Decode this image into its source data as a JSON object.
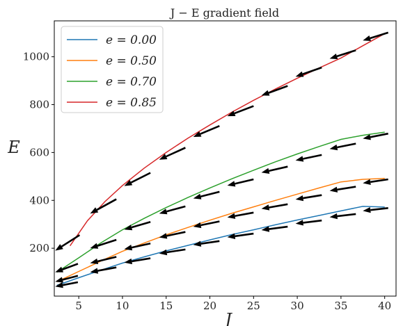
{
  "chart_data": {
    "type": "line",
    "title": "J − E gradient field",
    "xlabel": "J",
    "ylabel": "E",
    "xlim": [
      2.2,
      41.3
    ],
    "ylim": [
      0,
      1150
    ],
    "xticks": [
      5,
      10,
      15,
      20,
      25,
      30,
      35,
      40
    ],
    "yticks": [
      200,
      400,
      600,
      800,
      1000
    ],
    "grid": false,
    "legend_position": "top-left",
    "series": [
      {
        "name": "e = 0.00",
        "color": "#1f77b4",
        "x": [
          2.5,
          5,
          7.5,
          10,
          12.5,
          15,
          17.5,
          20,
          22.5,
          25,
          27.5,
          30,
          32.5,
          35,
          37.5,
          40
        ],
        "y": [
          45,
          77,
          108,
          138,
          164,
          189,
          212,
          235,
          257,
          277,
          298,
          318,
          337,
          356,
          375,
          372
        ]
      },
      {
        "name": "e = 0.50",
        "color": "#ff7f0e",
        "x": [
          2.5,
          5,
          7.5,
          10,
          12.5,
          15,
          17.5,
          20,
          22.5,
          25,
          27.5,
          30,
          32.5,
          35,
          37.5,
          40
        ],
        "y": [
          60,
          103,
          146,
          187,
          222,
          256,
          287,
          317,
          346,
          373,
          400,
          426,
          452,
          477,
          488,
          492
        ]
      },
      {
        "name": "e = 0.70",
        "color": "#2ca02c",
        "x": [
          2.5,
          5,
          7.5,
          10,
          12.5,
          15,
          17.5,
          20,
          22.5,
          25,
          27.5,
          30,
          32.5,
          35,
          37.5,
          40
        ],
        "y": [
          100,
          160,
          222,
          277,
          325,
          370,
          412,
          452,
          490,
          526,
          561,
          594,
          625,
          655,
          672,
          685
        ]
      },
      {
        "name": "e = 0.85",
        "color": "#d62728",
        "x": [
          4,
          6,
          8,
          10,
          12.5,
          15,
          17.5,
          20,
          22.5,
          25,
          27.5,
          30,
          32.5,
          35,
          37.5,
          40
        ],
        "y": [
          210,
          315,
          395,
          462,
          535,
          600,
          660,
          715,
          768,
          818,
          865,
          910,
          953,
          995,
          1046,
          1097
        ]
      }
    ],
    "arrows": [
      {
        "x": 2.3,
        "y": 40,
        "dx": 2.6,
        "dy": 18
      },
      {
        "x": 6.3,
        "y": 100,
        "dx": 3.0,
        "dy": 20
      },
      {
        "x": 10.2,
        "y": 140,
        "dx": 3.0,
        "dy": 18
      },
      {
        "x": 14.2,
        "y": 178,
        "dx": 3.0,
        "dy": 17
      },
      {
        "x": 18.1,
        "y": 214,
        "dx": 3.0,
        "dy": 16
      },
      {
        "x": 22.0,
        "y": 246,
        "dx": 3.0,
        "dy": 15
      },
      {
        "x": 25.9,
        "y": 276,
        "dx": 3.0,
        "dy": 14
      },
      {
        "x": 29.8,
        "y": 303,
        "dx": 3.0,
        "dy": 13
      },
      {
        "x": 33.7,
        "y": 330,
        "dx": 3.0,
        "dy": 13
      },
      {
        "x": 37.5,
        "y": 356,
        "dx": 2.9,
        "dy": 12
      },
      {
        "x": 2.3,
        "y": 60,
        "dx": 2.6,
        "dy": 25
      },
      {
        "x": 6.3,
        "y": 138,
        "dx": 3.0,
        "dy": 26
      },
      {
        "x": 10.2,
        "y": 196,
        "dx": 3.0,
        "dy": 24
      },
      {
        "x": 14.2,
        "y": 245,
        "dx": 3.0,
        "dy": 23
      },
      {
        "x": 18.1,
        "y": 290,
        "dx": 3.0,
        "dy": 22
      },
      {
        "x": 22.0,
        "y": 329,
        "dx": 3.0,
        "dy": 20
      },
      {
        "x": 25.9,
        "y": 365,
        "dx": 3.0,
        "dy": 19
      },
      {
        "x": 29.8,
        "y": 404,
        "dx": 3.0,
        "dy": 18
      },
      {
        "x": 33.7,
        "y": 440,
        "dx": 3.0,
        "dy": 17
      },
      {
        "x": 37.5,
        "y": 472,
        "dx": 2.9,
        "dy": 16
      },
      {
        "x": 2.3,
        "y": 100,
        "dx": 2.6,
        "dy": 35
      },
      {
        "x": 6.3,
        "y": 200,
        "dx": 3.0,
        "dy": 35
      },
      {
        "x": 10.2,
        "y": 278,
        "dx": 3.0,
        "dy": 32
      },
      {
        "x": 14.2,
        "y": 345,
        "dx": 3.0,
        "dy": 30
      },
      {
        "x": 18.1,
        "y": 408,
        "dx": 3.0,
        "dy": 28
      },
      {
        "x": 22.0,
        "y": 462,
        "dx": 3.0,
        "dy": 26
      },
      {
        "x": 25.9,
        "y": 516,
        "dx": 3.0,
        "dy": 25
      },
      {
        "x": 29.8,
        "y": 567,
        "dx": 3.0,
        "dy": 23
      },
      {
        "x": 33.7,
        "y": 615,
        "dx": 3.0,
        "dy": 22
      },
      {
        "x": 37.5,
        "y": 658,
        "dx": 2.9,
        "dy": 21
      },
      {
        "x": 2.3,
        "y": 190,
        "dx": 2.8,
        "dy": 65
      },
      {
        "x": 6.3,
        "y": 345,
        "dx": 3.0,
        "dy": 60
      },
      {
        "x": 10.2,
        "y": 460,
        "dx": 3.0,
        "dy": 55
      },
      {
        "x": 14.2,
        "y": 570,
        "dx": 3.0,
        "dy": 50
      },
      {
        "x": 18.1,
        "y": 665,
        "dx": 3.0,
        "dy": 46
      },
      {
        "x": 22.0,
        "y": 752,
        "dx": 3.0,
        "dy": 42
      },
      {
        "x": 25.9,
        "y": 838,
        "dx": 3.0,
        "dy": 40
      },
      {
        "x": 29.8,
        "y": 917,
        "dx": 3.0,
        "dy": 38
      },
      {
        "x": 33.7,
        "y": 992,
        "dx": 3.0,
        "dy": 35
      },
      {
        "x": 37.5,
        "y": 1068,
        "dx": 2.9,
        "dy": 33
      }
    ]
  }
}
